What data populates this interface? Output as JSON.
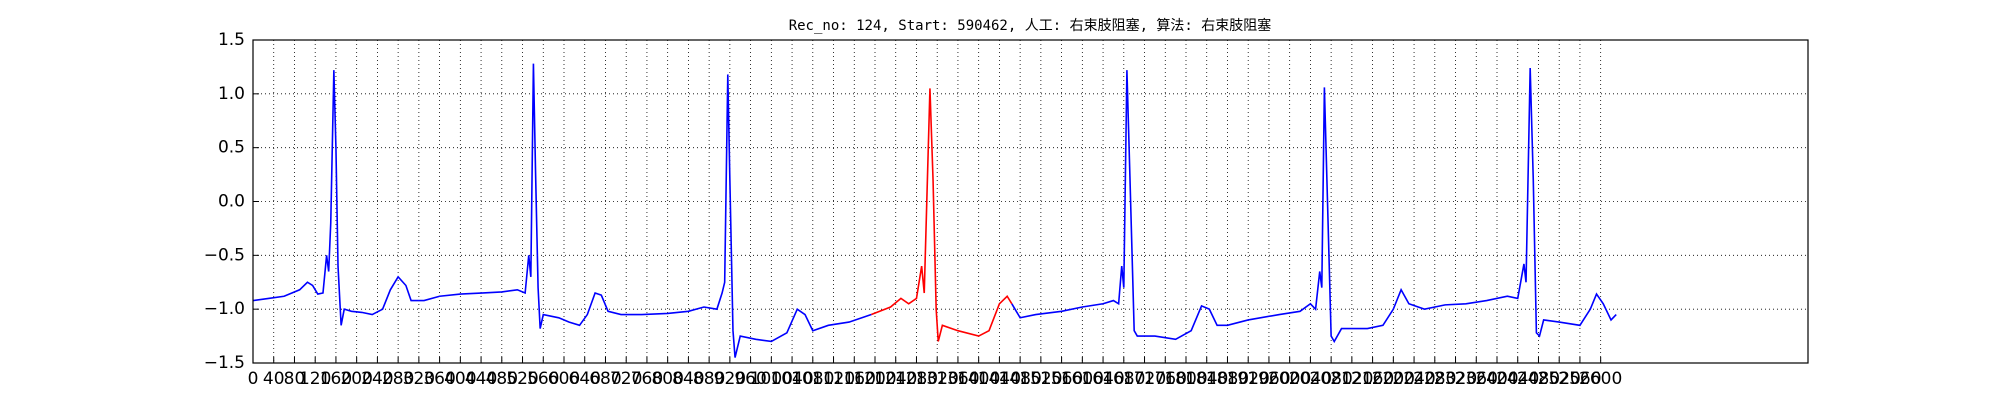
{
  "chart_data": {
    "type": "line",
    "title": "Rec_no: 124, Start: 590462, 人工: 右束肢阻塞, 算法: 右束肢阻塞",
    "xlim": [
      0,
      3000
    ],
    "xticks": [
      0,
      40,
      80,
      120,
      160,
      200,
      240,
      280,
      320,
      360,
      400,
      440,
      480,
      520,
      560,
      600,
      640,
      680,
      720,
      760,
      800,
      840,
      880,
      920,
      960,
      1000,
      1040,
      1080,
      1120,
      1160,
      1200,
      1240,
      1280,
      1320,
      1360,
      1400,
      1440,
      1480,
      1520,
      1560,
      1600,
      1640,
      1680,
      1720,
      1760,
      1800,
      1840,
      1880,
      1920,
      1960,
      2000,
      2040,
      2080,
      2120,
      2160,
      2200,
      2240,
      2280,
      2320,
      2360,
      2400,
      2440,
      2480,
      2520,
      2560,
      2600
    ],
    "ylim": [
      -1.5,
      1.5
    ],
    "yticks": [
      {
        "value": -1.5,
        "label": "−1.5"
      },
      {
        "value": -1.0,
        "label": "−1.0"
      },
      {
        "value": -0.5,
        "label": "−0.5"
      },
      {
        "value": 0.0,
        "label": "0.0"
      },
      {
        "value": 0.5,
        "label": "0.5"
      },
      {
        "value": 1.0,
        "label": "1.0"
      },
      {
        "value": 1.5,
        "label": "1.5"
      }
    ],
    "grid": true,
    "series": [
      {
        "color": "#0000ff",
        "x": [
          0,
          30,
          60,
          90,
          105,
          115,
          125,
          135,
          142,
          146,
          150,
          156,
          160,
          164,
          170,
          176,
          190,
          210,
          230,
          250,
          265,
          280,
          295,
          305,
          330,
          360,
          400,
          440,
          480,
          510,
          525,
          532,
          536,
          541,
          545,
          550,
          554,
          560,
          590,
          610,
          630,
          645,
          660,
          672,
          685,
          710,
          750,
          800,
          840,
          870,
          895,
          905,
          910,
          916,
          920,
          926,
          930,
          940,
          970,
          1000,
          1030,
          1050,
          1065,
          1080,
          1110,
          1150,
          1193
        ],
        "values": [
          -0.92,
          -0.9,
          -0.88,
          -0.82,
          -0.75,
          -0.78,
          -0.86,
          -0.85,
          -0.5,
          -0.65,
          -0.2,
          1.22,
          0.5,
          -0.6,
          -1.15,
          -1.0,
          -1.02,
          -1.03,
          -1.05,
          -1.0,
          -0.82,
          -0.7,
          -0.78,
          -0.92,
          -0.92,
          -0.88,
          -0.86,
          -0.85,
          -0.84,
          -0.82,
          -0.85,
          -0.5,
          -0.7,
          1.28,
          0.3,
          -0.8,
          -1.18,
          -1.05,
          -1.08,
          -1.12,
          -1.15,
          -1.05,
          -0.85,
          -0.87,
          -1.02,
          -1.05,
          -1.05,
          -1.04,
          -1.02,
          -0.98,
          -1.0,
          -0.85,
          -0.75,
          1.18,
          0.2,
          -1.2,
          -1.45,
          -1.25,
          -1.28,
          -1.3,
          -1.22,
          -1.0,
          -1.05,
          -1.2,
          -1.15,
          -1.12,
          -1.05
        ]
      },
      {
        "color": "#ff0000",
        "x": [
          1193,
          1230,
          1250,
          1265,
          1280,
          1290,
          1295,
          1306,
          1312,
          1318,
          1322,
          1330,
          1360,
          1400,
          1420,
          1440,
          1455,
          1464
        ],
        "values": [
          -1.05,
          -0.98,
          -0.9,
          -0.95,
          -0.9,
          -0.6,
          -0.85,
          1.05,
          0.2,
          -1.0,
          -1.3,
          -1.15,
          -1.2,
          -1.25,
          -1.2,
          -0.95,
          -0.88,
          -0.95
        ]
      },
      {
        "color": "#0000ff",
        "x": [
          1464,
          1480,
          1510,
          1560,
          1600,
          1640,
          1660,
          1670,
          1676,
          1680,
          1686,
          1692,
          1700,
          1706,
          1740,
          1780,
          1810,
          1830,
          1845,
          1860,
          1880,
          1920,
          1980,
          2020,
          2040,
          2050,
          2058,
          2062,
          2067,
          2073,
          2080,
          2086,
          2100,
          2150,
          2180,
          2200,
          2215,
          2230,
          2260,
          2300,
          2340,
          2380,
          2420,
          2440,
          2452,
          2456,
          2464,
          2470,
          2476,
          2482,
          2490,
          2520,
          2560,
          2580,
          2592,
          2605,
          2620,
          2630
        ],
        "values": [
          -0.95,
          -1.08,
          -1.05,
          -1.02,
          -0.98,
          -0.95,
          -0.92,
          -0.95,
          -0.6,
          -0.8,
          1.22,
          0.2,
          -1.2,
          -1.25,
          -1.25,
          -1.28,
          -1.2,
          -0.97,
          -1.0,
          -1.15,
          -1.15,
          -1.1,
          -1.05,
          -1.02,
          -0.95,
          -1.0,
          -0.65,
          -0.8,
          1.06,
          0.0,
          -1.25,
          -1.3,
          -1.18,
          -1.18,
          -1.15,
          -1.0,
          -0.82,
          -0.95,
          -1.0,
          -0.96,
          -0.95,
          -0.92,
          -0.88,
          -0.9,
          -0.58,
          -0.75,
          1.24,
          0.2,
          -1.22,
          -1.25,
          -1.1,
          -1.12,
          -1.15,
          -1.0,
          -0.86,
          -0.95,
          -1.1,
          -1.05
        ]
      }
    ]
  }
}
